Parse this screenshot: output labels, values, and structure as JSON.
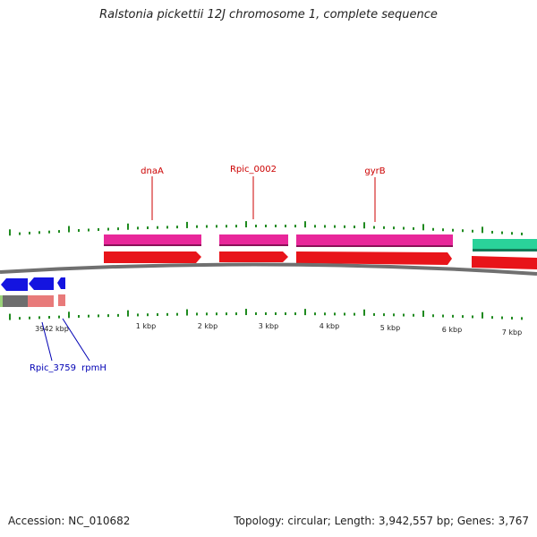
{
  "title": "Ralstonia pickettii 12J chromosome 1, complete sequence",
  "footer": {
    "accession": "Accession: NC_010682",
    "topology": "Topology: circular; Length: 3,942,557 bp; Genes: 3,767"
  },
  "colors": {
    "forward_gene": "#e8279a",
    "forward_cds": "#e8141a",
    "reverse_cds": "#1414e0",
    "reverse_gene": "#e87a7a",
    "rrna": "#2ad29a",
    "forward_label": "#cc0000",
    "reverse_label": "#0000b4",
    "tick": "#1f8a1f",
    "backbone": "#707070"
  },
  "tick_labels": [
    "3942 kbp",
    "1 kbp",
    "2 kbp",
    "3 kbp",
    "4 kbp",
    "5 kbp",
    "6 kbp",
    "7 kbp"
  ],
  "forward_labels": [
    "dnaA",
    "Rpic_0002",
    "gyrB"
  ],
  "reverse_labels": [
    "Rpic_3759",
    "rpmH"
  ]
}
